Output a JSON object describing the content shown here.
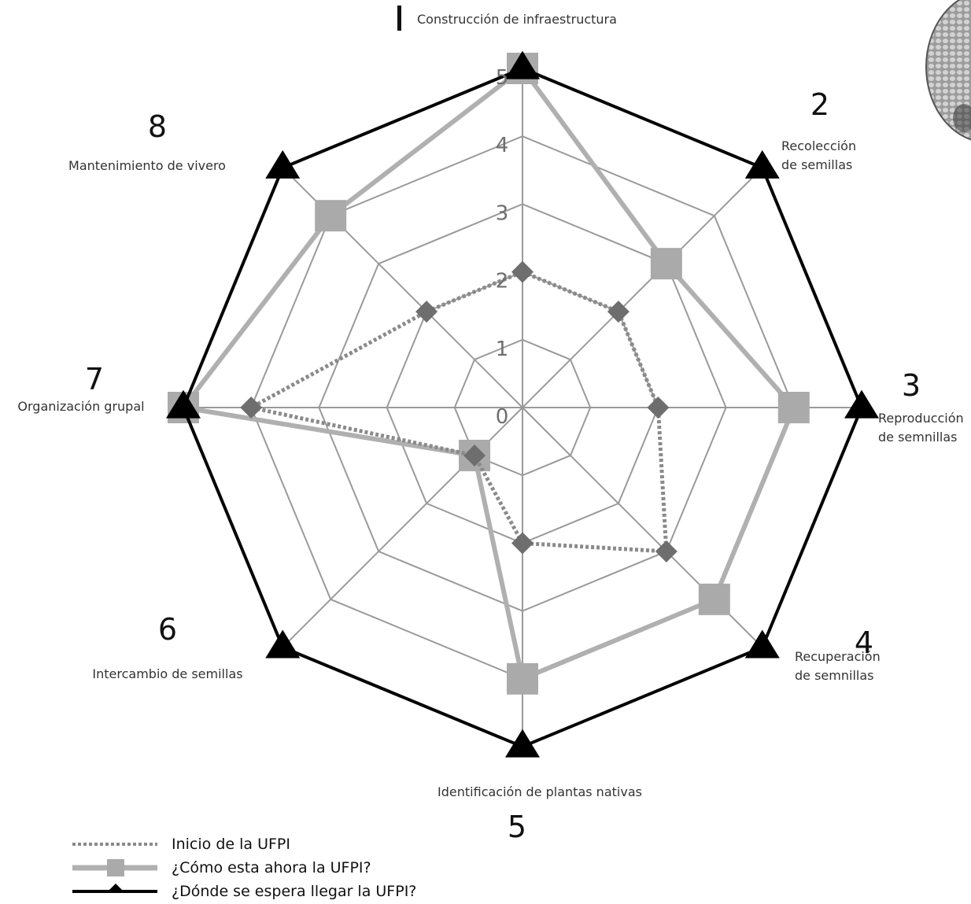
{
  "chart_data": {
    "type": "radar",
    "rmax": 5,
    "ticks": [
      "0",
      "1",
      "2",
      "3",
      "4",
      "5"
    ],
    "axes": [
      {
        "number": "I",
        "label": [
          "Construcción de infraestructura"
        ]
      },
      {
        "number": "2",
        "label": [
          "Recolección",
          "de semillas"
        ]
      },
      {
        "number": "3",
        "label": [
          "Reproducción",
          "de semnillas"
        ]
      },
      {
        "number": "4",
        "label": [
          "Recuperación",
          "de semnillas"
        ]
      },
      {
        "number": "5",
        "label": [
          "Identificación de plantas nativas"
        ]
      },
      {
        "number": "6",
        "label": [
          "Intercambio de semillas"
        ]
      },
      {
        "number": "7",
        "label": [
          "Organización grupal"
        ]
      },
      {
        "number": "8",
        "label": [
          "Mantenimiento de vivero"
        ]
      }
    ],
    "series": [
      {
        "name": "Inicio de la UFPI",
        "marker": "diamond",
        "style": "dotted",
        "color": "#8a8a8a",
        "marker_color": "#6e6e6e",
        "values": [
          2,
          2,
          2,
          3,
          2,
          1,
          4,
          2
        ]
      },
      {
        "name": "¿Cómo esta ahora la UFPI?",
        "marker": "square",
        "style": "solid",
        "color": "#b0b0b0",
        "marker_color": "#aaaaaa",
        "values": [
          5,
          3,
          4,
          4,
          4,
          1,
          5,
          4
        ]
      },
      {
        "name": "¿Dónde se espera llegar la UFPI?",
        "marker": "triangle",
        "style": "solid",
        "color": "#000000",
        "marker_color": "#000000",
        "values": [
          5,
          5,
          5,
          5,
          5,
          5,
          5,
          5
        ]
      }
    ],
    "grid_color": "#9a9a9a"
  }
}
